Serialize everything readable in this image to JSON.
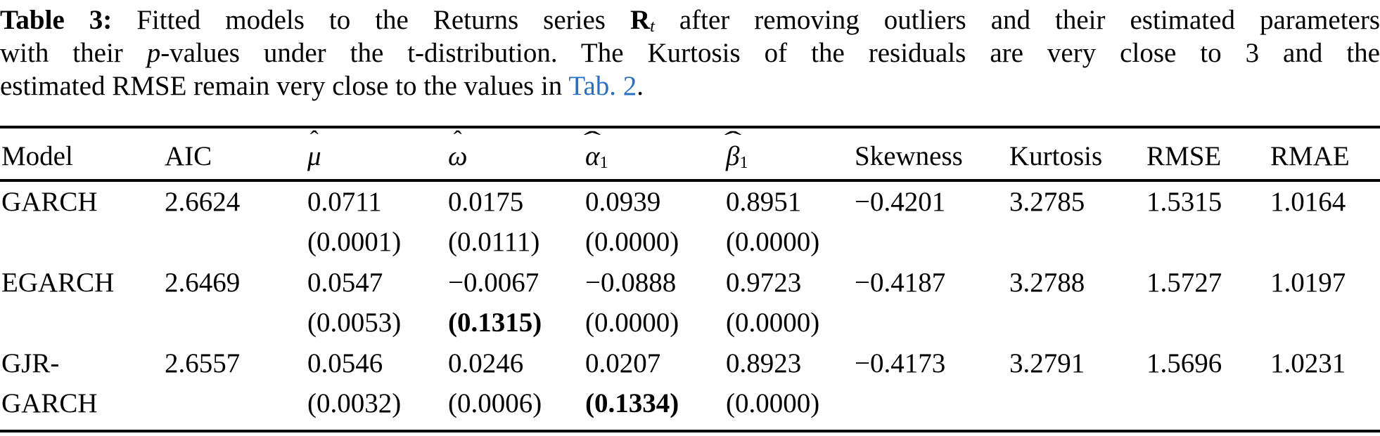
{
  "caption": {
    "label": "Table 3:",
    "l1_a": " Fitted models to the Returns series ",
    "series_symbol": "R",
    "series_sub": "t",
    "l1_b": " after removing outliers and their estimated parameters",
    "l2_a": "with their ",
    "p_italic": "p",
    "l2_b": "-values under the t-distribution. The Kurtosis of the residuals are very close to 3 and the",
    "l3_a": "estimated RMSE remain very close to the values in ",
    "link_label": "Tab. 2",
    "l3_b": "."
  },
  "colors": {
    "link_blue": "#2a70c2",
    "text": "#000000",
    "rule": "#000000",
    "background": "#ffffff"
  },
  "table": {
    "columns": [
      {
        "label": "Model"
      },
      {
        "label": "AIC"
      },
      {
        "base": "μ",
        "hat": "ˆ",
        "sub": ""
      },
      {
        "base": "ω",
        "hat": "ˆ",
        "sub": ""
      },
      {
        "base": "α",
        "hat": "ˆ",
        "sub": "1"
      },
      {
        "base": "β",
        "hat": "ˆ",
        "sub": "1"
      },
      {
        "label": "Skewness"
      },
      {
        "label": "Kurtosis"
      },
      {
        "label": "RMSE"
      },
      {
        "label": "RMAE"
      }
    ],
    "rows": [
      {
        "model_line1": "GARCH",
        "model_line2": "",
        "aic": "2.6624",
        "mu": {
          "value": "0.0711",
          "p": "(0.0001)",
          "p_bold": false
        },
        "omega": {
          "value": "0.0175",
          "p": "(0.0111)",
          "p_bold": false
        },
        "alpha1": {
          "value": "0.0939",
          "p": "(0.0000)",
          "p_bold": false
        },
        "beta1": {
          "value": "0.8951",
          "p": "(0.0000)",
          "p_bold": false
        },
        "skewness": "−0.4201",
        "kurtosis": "3.2785",
        "rmse": "1.5315",
        "rmae": "1.0164"
      },
      {
        "model_line1": "EGARCH",
        "model_line2": "",
        "aic": "2.6469",
        "mu": {
          "value": "0.0547",
          "p": "(0.0053)",
          "p_bold": false
        },
        "omega": {
          "value": "−0.0067",
          "p": "(0.1315)",
          "p_bold": true
        },
        "alpha1": {
          "value": "−0.0888",
          "p": "(0.0000)",
          "p_bold": false
        },
        "beta1": {
          "value": "0.9723",
          "p": "(0.0000)",
          "p_bold": false
        },
        "skewness": "−0.4187",
        "kurtosis": "3.2788",
        "rmse": "1.5727",
        "rmae": "1.0197"
      },
      {
        "model_line1": "GJR-",
        "model_line2": "GARCH",
        "aic": "2.6557",
        "mu": {
          "value": "0.0546",
          "p": "(0.0032)",
          "p_bold": false
        },
        "omega": {
          "value": "0.0246",
          "p": "(0.0006)",
          "p_bold": false
        },
        "alpha1": {
          "value": "0.0207",
          "p": "(0.1334)",
          "p_bold": true
        },
        "beta1": {
          "value": "0.8923",
          "p": "(0.0000)",
          "p_bold": false
        },
        "skewness": "−0.4173",
        "kurtosis": "3.2791",
        "rmse": "1.5696",
        "rmae": "1.0231"
      }
    ]
  }
}
